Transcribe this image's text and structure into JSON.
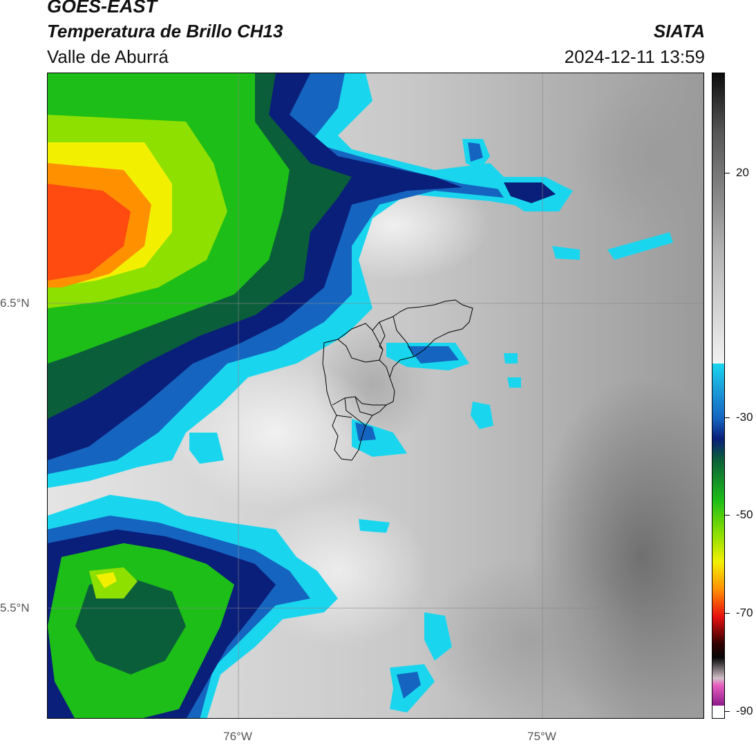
{
  "header": {
    "satellite": "GOES-EAST",
    "product": "Temperatura de Brillo CH13",
    "region": "Valle de Aburrá",
    "brand": "SIATA",
    "datetime": "2024-12-11 13:59"
  },
  "axes": {
    "lat_labels": [
      "6.5°N",
      "5.5°N"
    ],
    "lon_labels": [
      "76°W",
      "75°W"
    ]
  },
  "colorbar": {
    "tick_labels": [
      "20",
      "-30",
      "-50",
      "-70",
      "-90"
    ],
    "unit_range": [
      -92,
      34
    ],
    "colors": {
      "warm_grey_high": "#202020",
      "warm_grey_low": "#f0f0f0",
      "cyan": "#19d6ee",
      "blue": "#1565c0",
      "navy": "#0a1f7a",
      "dark_green": "#0b5e3a",
      "green": "#1dbe18",
      "lime": "#8ee000",
      "yellow": "#f2f000",
      "orange": "#ff9000",
      "red": "#e81010",
      "black": "#080808",
      "magenta": "#e860c0",
      "purple": "#8a1a8a"
    }
  }
}
